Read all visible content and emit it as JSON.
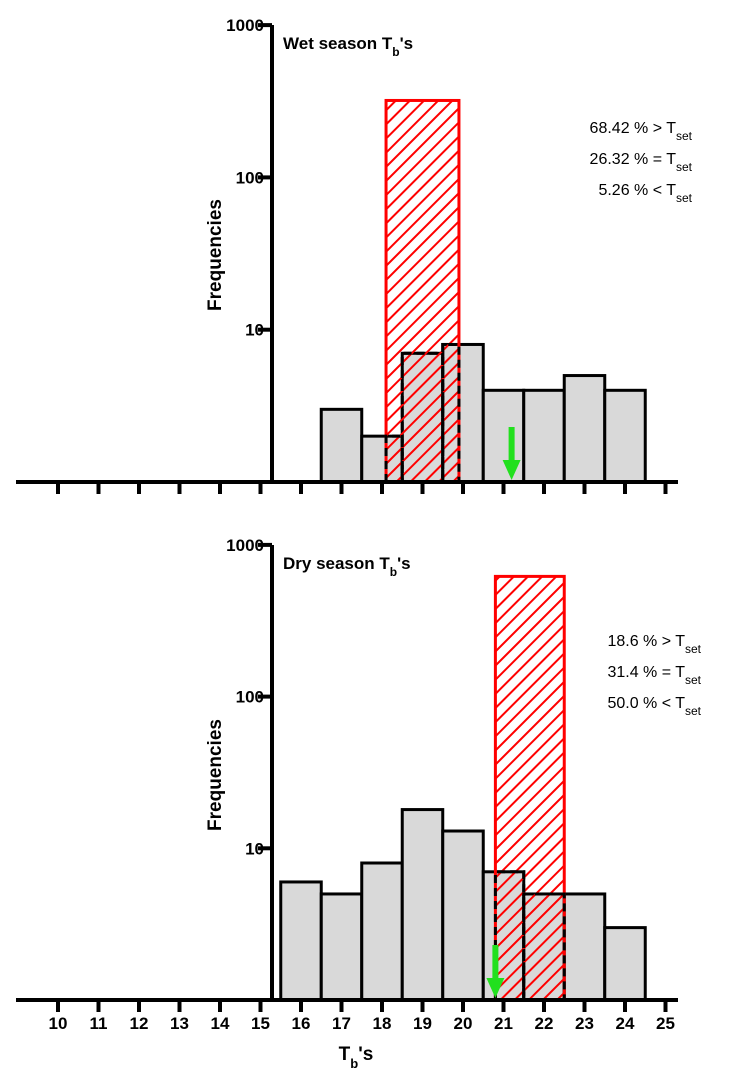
{
  "chart_data": [
    {
      "type": "bar",
      "title": "Wet season T",
      "title_sub": "b",
      "title_suffix": "'s",
      "ylabel": "Frequencies",
      "yscale": "log",
      "ylim": [
        1,
        1000
      ],
      "yticks": [
        "10",
        "100",
        "1000"
      ],
      "x": [
        17,
        18,
        19,
        20,
        21,
        22,
        23,
        24
      ],
      "values": [
        3,
        2,
        7,
        8,
        4,
        4,
        5,
        4
      ],
      "bin_width": 1,
      "tset_range": [
        18.1,
        19.9
      ],
      "tset_top": 320,
      "arrow_x": 21.2,
      "annotations": [
        {
          "text": "68.42 % > T",
          "sub": "set"
        },
        {
          "text": "26.32 % = T",
          "sub": "set"
        },
        {
          "text": "5.26 % < T",
          "sub": "set"
        }
      ],
      "colors": {
        "bar_fill": "#d9d9d9",
        "bar_edge": "#000000",
        "tset": "#ff0000",
        "arrow": "#22e01e"
      }
    },
    {
      "type": "bar",
      "title": "Dry season T",
      "title_sub": "b",
      "title_suffix": "'s",
      "ylabel": "Frequencies",
      "yscale": "log",
      "ylim": [
        1,
        1000
      ],
      "yticks": [
        "10",
        "100",
        "1000"
      ],
      "x": [
        16,
        17,
        18,
        19,
        20,
        21,
        22,
        23,
        24
      ],
      "values": [
        6,
        5,
        8,
        18,
        13,
        7,
        5,
        5,
        3
      ],
      "bin_width": 1,
      "tset_range": [
        20.8,
        22.5
      ],
      "tset_top": 620,
      "arrow_x": 20.8,
      "annotations": [
        {
          "text": "18.6 % > T",
          "sub": "set"
        },
        {
          "text": "31.4 % = T",
          "sub": "set"
        },
        {
          "text": "50.0 % < T",
          "sub": "set"
        }
      ],
      "colors": {
        "bar_fill": "#d9d9d9",
        "bar_edge": "#000000",
        "tset": "#ff0000",
        "arrow": "#22e01e"
      }
    }
  ],
  "xaxis": {
    "ticks": [
      "10",
      "11",
      "12",
      "13",
      "14",
      "15",
      "16",
      "17",
      "18",
      "19",
      "20",
      "21",
      "22",
      "23",
      "24",
      "25"
    ],
    "label": "T",
    "label_sub": "b",
    "label_suffix": "'s"
  }
}
